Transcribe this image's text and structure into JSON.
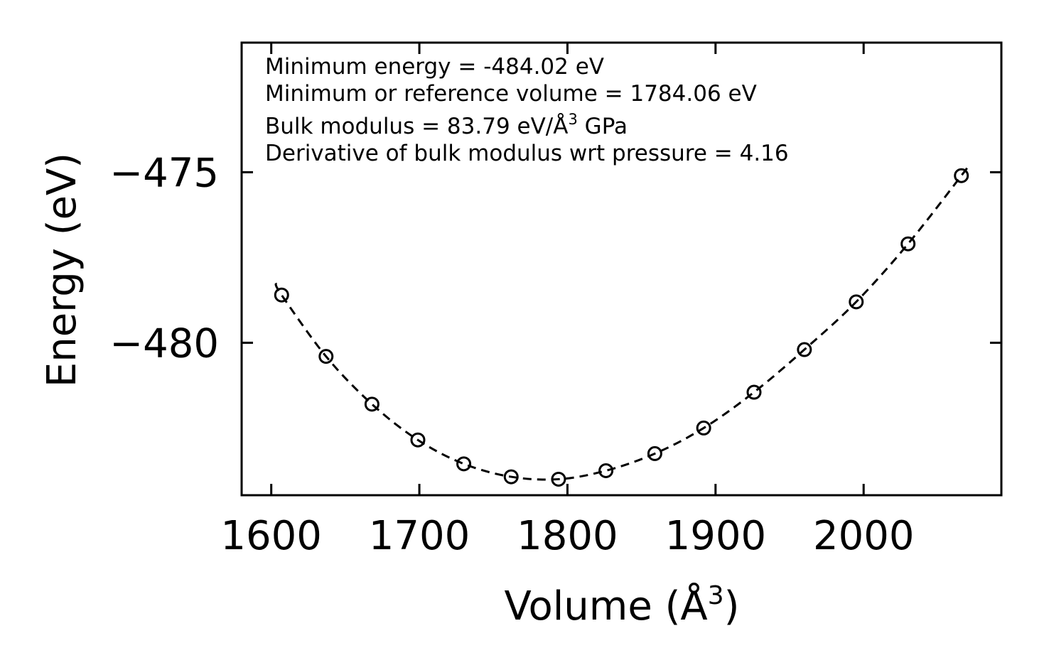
{
  "chart_data": {
    "type": "scatter",
    "xlabel_base": "Volume (Å",
    "xlabel_sup": "3",
    "xlabel_tail": ")",
    "ylabel": "Energy (eV)",
    "xlim": [
      1580,
      2093
    ],
    "ylim": [
      -484.47,
      -471.2
    ],
    "xticks": [
      1600,
      1700,
      1800,
      1900,
      2000
    ],
    "yticks": [
      -475,
      -480
    ],
    "xtick_labels": [
      "1600",
      "1700",
      "1800",
      "1900",
      "2000"
    ],
    "ytick_labels": [
      "−475",
      "−480"
    ],
    "series": [
      {
        "name": "data points",
        "style": "open-circle",
        "x": [
          1607,
          1637,
          1668,
          1699,
          1730,
          1762,
          1794,
          1826,
          1859,
          1892,
          1926,
          1960,
          1995,
          2030,
          2066
        ],
        "y": [
          -478.6,
          -480.4,
          -481.8,
          -482.85,
          -483.55,
          -483.93,
          -484.0,
          -483.75,
          -483.25,
          -482.5,
          -481.45,
          -480.2,
          -478.8,
          -477.1,
          -475.1
        ]
      },
      {
        "name": "fit",
        "style": "dashed-line",
        "x": [
          1603,
          1607,
          1637,
          1668,
          1699,
          1730,
          1762,
          1794,
          1826,
          1859,
          1892,
          1926,
          1960,
          1995,
          2030,
          2066,
          2070
        ],
        "y": [
          -478.25,
          -478.6,
          -480.4,
          -481.8,
          -482.85,
          -483.55,
          -483.93,
          -484.0,
          -483.75,
          -483.25,
          -482.5,
          -481.45,
          -480.2,
          -478.8,
          -477.1,
          -475.1,
          -474.85
        ]
      }
    ],
    "annotations": {
      "line1": "Minimum energy = -484.02 eV",
      "line2": "Minimum or reference volume = 1784.06 eV",
      "line3_pre": "Bulk modulus = 83.79 eV/Å",
      "line3_sup": "3",
      "line3_post": " GPa",
      "line4": "Derivative of bulk modulus wrt pressure = 4.16"
    },
    "grid": false,
    "legend": "none"
  }
}
